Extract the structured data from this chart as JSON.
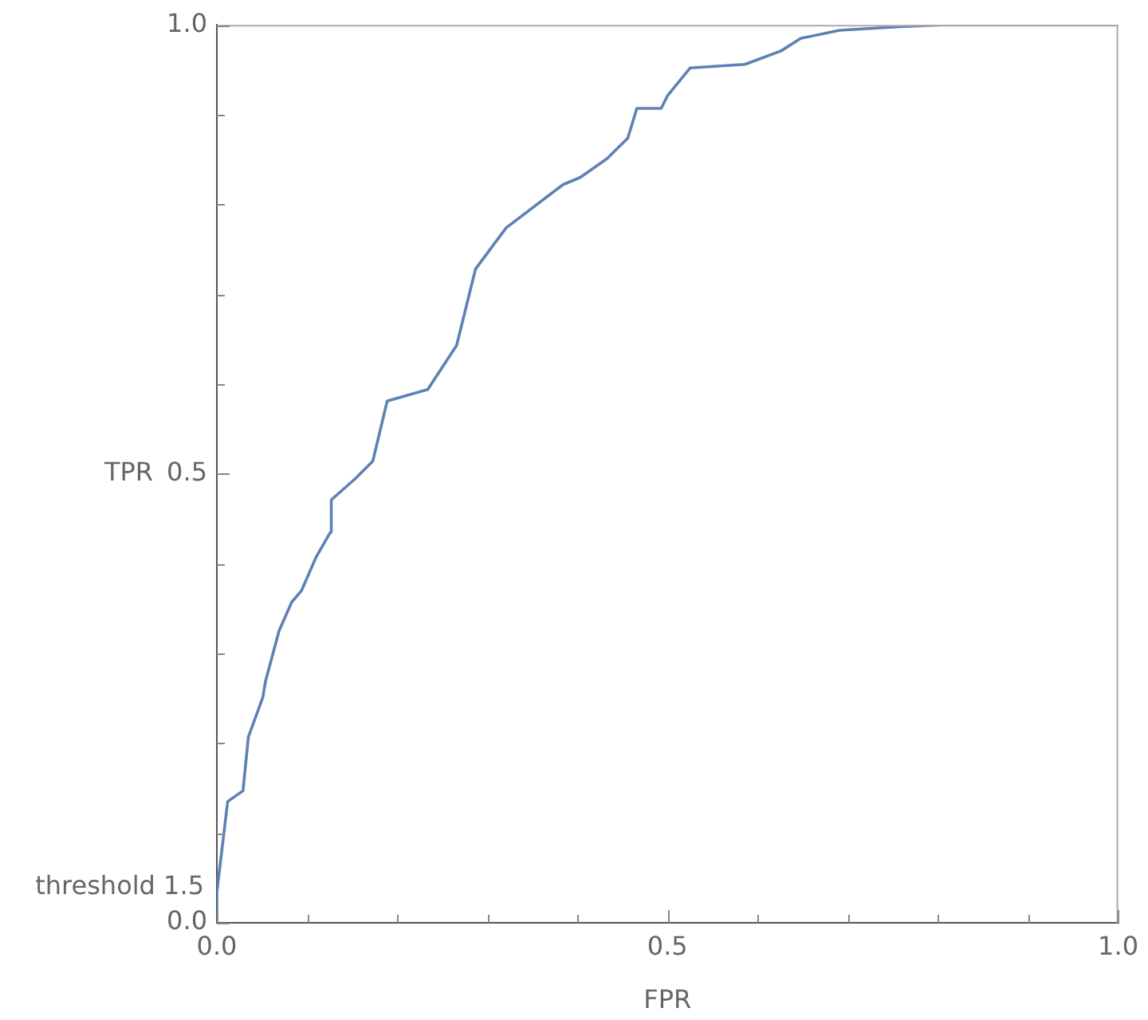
{
  "chart_data": {
    "type": "line",
    "xlabel": "FPR",
    "ylabel": "TPR",
    "x": [
      0,
      0,
      0.012,
      0.029,
      0.035,
      0.051,
      0.054,
      0.069,
      0.083,
      0.094,
      0.11,
      0.126,
      0.127,
      0.154,
      0.173,
      0.189,
      0.234,
      0.266,
      0.287,
      0.321,
      0.384,
      0.403,
      0.433,
      0.456,
      0.466,
      0.493,
      0.5,
      0.525,
      0.586,
      0.626,
      0.648,
      0.691,
      0.758,
      0.805,
      1.0
    ],
    "series": [
      {
        "color": "#5e81b5",
        "values": [
          0,
          0.034,
          0.135,
          0.147,
          0.207,
          0.251,
          0.269,
          0.325,
          0.357,
          0.37,
          0.407,
          0.435,
          0.471,
          0.495,
          0.514,
          0.581,
          0.594,
          0.643,
          0.728,
          0.774,
          0.822,
          0.83,
          0.851,
          0.874,
          0.907,
          0.907,
          0.921,
          0.952,
          0.956,
          0.971,
          0.985,
          0.994,
          0.998,
          1.0,
          1.0
        ]
      }
    ],
    "xlim": [
      0,
      1
    ],
    "ylim": [
      0,
      1
    ],
    "xticks": [
      {
        "value": 0,
        "label": "0.0"
      },
      {
        "value": 0.1,
        "label": null
      },
      {
        "value": 0.2,
        "label": null
      },
      {
        "value": 0.3,
        "label": null
      },
      {
        "value": 0.4,
        "label": null
      },
      0.5,
      {
        "value": 0.6,
        "label": null
      },
      {
        "value": 0.7,
        "label": null
      },
      {
        "value": 0.8,
        "label": null
      },
      {
        "value": 0.9,
        "label": null
      },
      {
        "value": 1,
        "label": "1.0"
      }
    ],
    "yticks": [
      {
        "value": 0,
        "label": "0.0"
      },
      {
        "value": 0.1,
        "label": null
      },
      {
        "value": 0.2,
        "label": null
      },
      {
        "value": 0.3,
        "label": null
      },
      {
        "value": 0.4,
        "label": null
      },
      0.5,
      {
        "value": 0.6,
        "label": null
      },
      {
        "value": 0.7,
        "label": null
      },
      {
        "value": 0.8,
        "label": null
      },
      {
        "value": 0.9,
        "label": null
      },
      {
        "value": 1,
        "label": "1.0"
      }
    ],
    "annotations": [
      {
        "text": "threshold 1.5",
        "x": 0,
        "y": 0
      }
    ]
  }
}
